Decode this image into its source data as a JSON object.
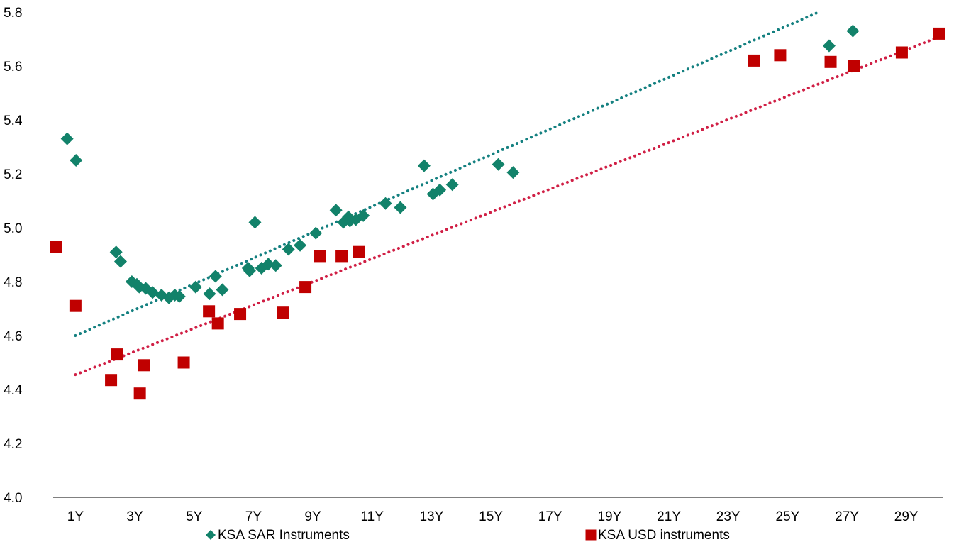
{
  "chart_data": {
    "type": "scatter",
    "x_unit": "years",
    "xlim": [
      0.25,
      30.25
    ],
    "ylim": [
      4.0,
      5.8
    ],
    "x_ticks": [
      {
        "value": 1,
        "label": "1Y"
      },
      {
        "value": 3,
        "label": "3Y"
      },
      {
        "value": 5,
        "label": "5Y"
      },
      {
        "value": 7,
        "label": "7Y"
      },
      {
        "value": 9,
        "label": "9Y"
      },
      {
        "value": 11,
        "label": "11Y"
      },
      {
        "value": 13,
        "label": "13Y"
      },
      {
        "value": 15,
        "label": "15Y"
      },
      {
        "value": 17,
        "label": "17Y"
      },
      {
        "value": 19,
        "label": "19Y"
      },
      {
        "value": 21,
        "label": "21Y"
      },
      {
        "value": 23,
        "label": "23Y"
      },
      {
        "value": 25,
        "label": "25Y"
      },
      {
        "value": 27,
        "label": "27Y"
      },
      {
        "value": 29,
        "label": "29Y"
      }
    ],
    "y_ticks": [
      {
        "value": 4.0,
        "label": "4.0"
      },
      {
        "value": 4.2,
        "label": "4.2"
      },
      {
        "value": 4.4,
        "label": "4.4"
      },
      {
        "value": 4.6,
        "label": "4.6"
      },
      {
        "value": 4.8,
        "label": "4.8"
      },
      {
        "value": 5.0,
        "label": "5.0"
      },
      {
        "value": 5.2,
        "label": "5.2"
      },
      {
        "value": 5.4,
        "label": "5.4"
      },
      {
        "value": 5.6,
        "label": "5.6"
      },
      {
        "value": 5.8,
        "label": "5.8"
      }
    ],
    "grid": false,
    "legend_position": "bottom",
    "series": [
      {
        "name": "KSA SAR Instruments",
        "marker": "diamond",
        "color": "#12826A",
        "trendline": {
          "style": "dotted",
          "color": "#148080",
          "x_start": 1.0,
          "y_start": 4.6,
          "x_end": 26.05,
          "y_end": 5.8
        },
        "points": [
          [
            0.72,
            5.33
          ],
          [
            1.02,
            5.25
          ],
          [
            2.37,
            4.91
          ],
          [
            2.52,
            4.875
          ],
          [
            2.9,
            4.8
          ],
          [
            3.07,
            4.79
          ],
          [
            3.15,
            4.78
          ],
          [
            3.37,
            4.775
          ],
          [
            3.6,
            4.76
          ],
          [
            3.9,
            4.75
          ],
          [
            4.15,
            4.74
          ],
          [
            4.35,
            4.75
          ],
          [
            4.5,
            4.745
          ],
          [
            5.05,
            4.78
          ],
          [
            5.52,
            4.755
          ],
          [
            5.72,
            4.82
          ],
          [
            5.95,
            4.77
          ],
          [
            6.82,
            4.85
          ],
          [
            6.87,
            4.84
          ],
          [
            7.05,
            5.02
          ],
          [
            7.27,
            4.85
          ],
          [
            7.5,
            4.865
          ],
          [
            7.75,
            4.86
          ],
          [
            8.18,
            4.92
          ],
          [
            8.57,
            4.935
          ],
          [
            9.1,
            4.98
          ],
          [
            9.78,
            5.065
          ],
          [
            10.03,
            5.02
          ],
          [
            10.2,
            5.04
          ],
          [
            10.25,
            5.025
          ],
          [
            10.45,
            5.03
          ],
          [
            10.7,
            5.045
          ],
          [
            11.45,
            5.09
          ],
          [
            11.95,
            5.075
          ],
          [
            12.75,
            5.23
          ],
          [
            13.05,
            5.125
          ],
          [
            13.28,
            5.14
          ],
          [
            13.7,
            5.16
          ],
          [
            15.25,
            5.235
          ],
          [
            15.75,
            5.205
          ],
          [
            26.4,
            5.675
          ],
          [
            27.2,
            5.73
          ]
        ]
      },
      {
        "name": "KSA USD instruments",
        "marker": "square",
        "color": "#C00000",
        "trendline": {
          "style": "dotted",
          "color": "#D01F45",
          "x_start": 1.0,
          "y_start": 4.455,
          "x_end": 30.2,
          "y_end": 5.712
        },
        "points": [
          [
            0.35,
            4.93
          ],
          [
            1.0,
            4.71
          ],
          [
            2.2,
            4.435
          ],
          [
            2.4,
            4.53
          ],
          [
            3.17,
            4.385
          ],
          [
            3.3,
            4.49
          ],
          [
            4.65,
            4.5
          ],
          [
            5.5,
            4.69
          ],
          [
            5.8,
            4.645
          ],
          [
            6.55,
            4.68
          ],
          [
            8.0,
            4.685
          ],
          [
            8.75,
            4.78
          ],
          [
            9.25,
            4.895
          ],
          [
            9.97,
            4.895
          ],
          [
            10.55,
            4.91
          ],
          [
            23.87,
            5.62
          ],
          [
            24.75,
            5.64
          ],
          [
            26.45,
            5.615
          ],
          [
            27.25,
            5.6
          ],
          [
            28.85,
            5.65
          ],
          [
            30.1,
            5.72
          ]
        ]
      }
    ]
  }
}
